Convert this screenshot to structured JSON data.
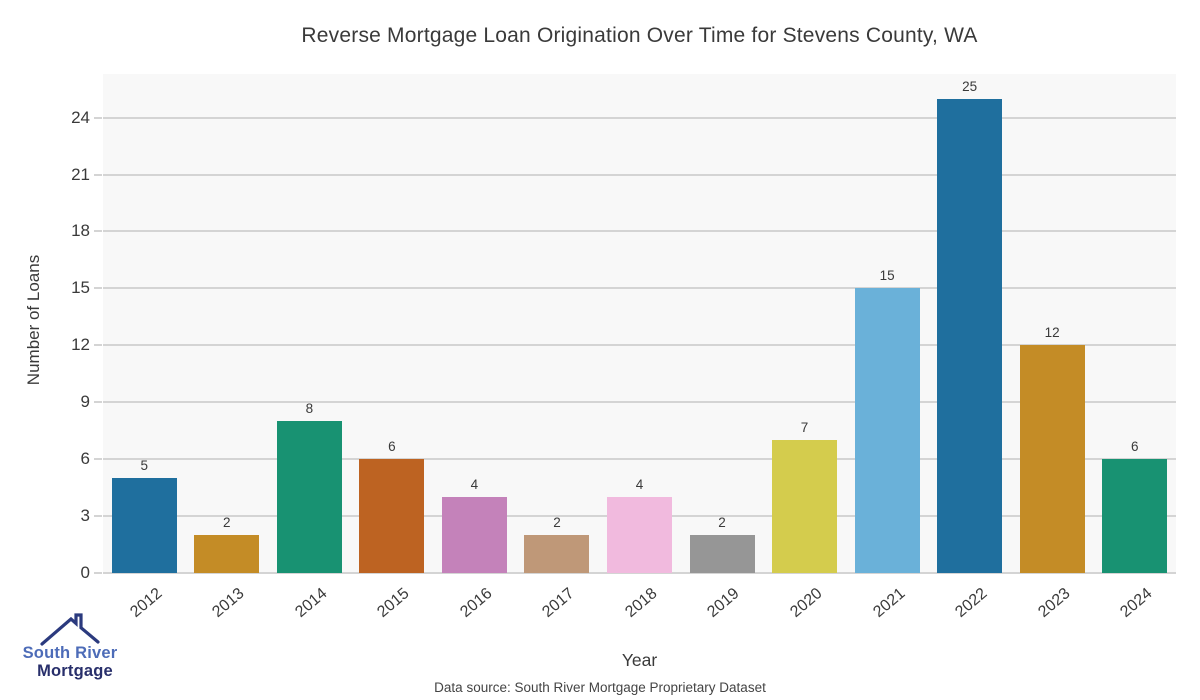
{
  "chart_data": {
    "type": "bar",
    "title": "Reverse Mortgage Loan Origination Over Time for Stevens County, WA",
    "xlabel": "Year",
    "ylabel": "Number of Loans",
    "categories": [
      "2012",
      "2013",
      "2014",
      "2015",
      "2016",
      "2017",
      "2018",
      "2019",
      "2020",
      "2021",
      "2022",
      "2023",
      "2024"
    ],
    "values": [
      5,
      2,
      8,
      6,
      4,
      2,
      4,
      2,
      7,
      15,
      25,
      12,
      6
    ],
    "bar_colors": [
      "#1f6f9e",
      "#c48c26",
      "#189272",
      "#bd6322",
      "#c482ba",
      "#bf9878",
      "#f1bade",
      "#969696",
      "#d4cc4d",
      "#6ab1d9",
      "#1f6f9e",
      "#c48c26",
      "#189272"
    ],
    "value_labels": [
      "5",
      "2",
      "8",
      "6",
      "4",
      "2",
      "4",
      "2",
      "7",
      "15",
      "25",
      "12",
      "6"
    ],
    "yticks": [
      0,
      3,
      6,
      9,
      12,
      15,
      18,
      21,
      24
    ],
    "ylim": [
      0,
      26.3
    ],
    "grid": "horizontal",
    "legend": "none",
    "plot_bg": "#f8f8f8",
    "grid_color": "#d4d4d4",
    "text_color": "#3a3a3a"
  },
  "branding": {
    "logo_line1": "South River",
    "logo_line2": "Mortgage",
    "logo_color_line1": "#4d6cb8",
    "logo_color_line2": "#282f6b",
    "roof_color": "#2b3a7e"
  },
  "footer": {
    "data_source": "Data source: South River Mortgage Proprietary Dataset"
  }
}
